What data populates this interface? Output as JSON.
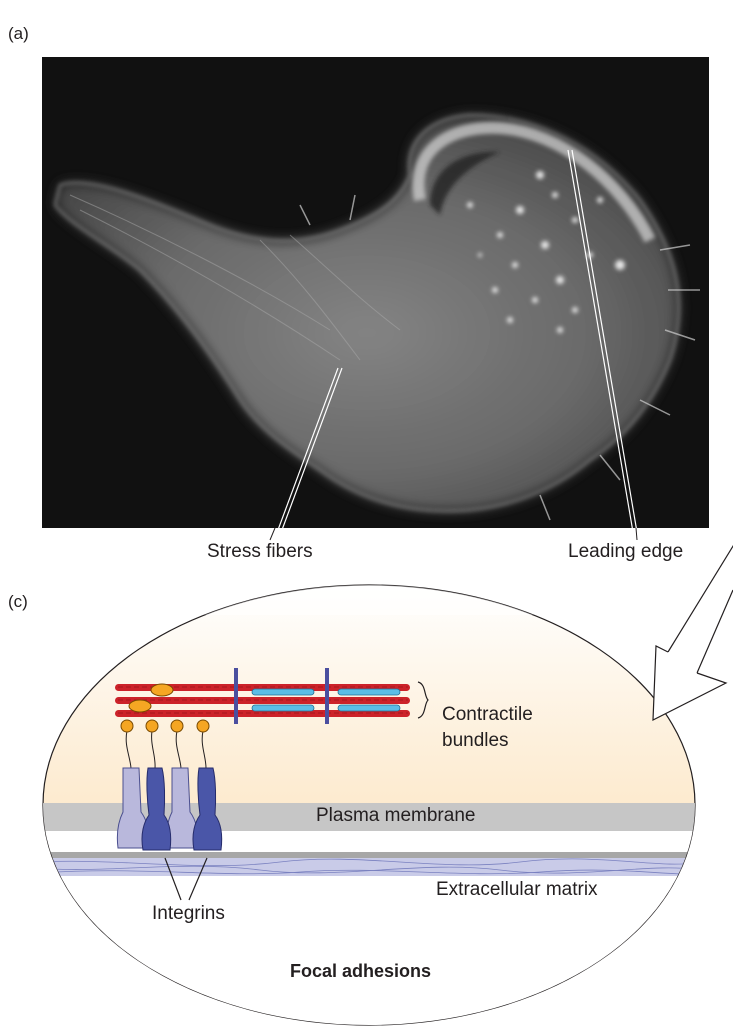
{
  "panels": {
    "a": "(a)",
    "c": "(c)"
  },
  "micrograph_labels": {
    "stress_fibers": "Stress fibers",
    "leading_edge": "Leading edge"
  },
  "diagram_labels": {
    "contractile_line1": "Contractile",
    "contractile_line2": "bundles",
    "plasma_membrane": "Plasma membrane",
    "extracellular_matrix": "Extracellular matrix",
    "integrins": "Integrins",
    "focal_adhesions": "Focal adhesions"
  },
  "colors": {
    "actin_red": "#cc2229",
    "myosin_blue": "#5bbde6",
    "z_line": "#4b4f9f",
    "adaptor_orange": "#f5a623",
    "integrin_light": "#b9b8dc",
    "integrin_dark": "#4a56a8",
    "membrane_gray": "#c6c6c6",
    "cell_fill": "#fde9c8"
  }
}
